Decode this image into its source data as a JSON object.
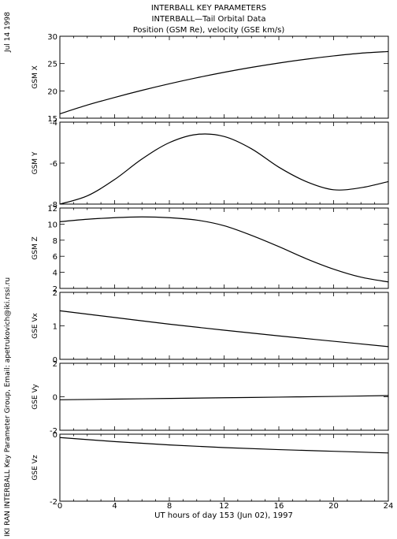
{
  "header": {
    "title_line1": "INTERBALL KEY PARAMETERS",
    "title_line2": "INTERBALL—Tail Orbital Data",
    "title_line3": "Position (GSM Re), velocity (GSE km/s)",
    "date": "Jul 14 1998",
    "credit": "IKI RAN INTERBALL Key Parameter Group, Email: apetrukovich@iki.rssi.ru"
  },
  "chart_data": [
    {
      "type": "line",
      "ylabel": "GSM X",
      "ylim": [
        15,
        30
      ],
      "yticks": [
        15,
        20,
        25,
        30
      ],
      "x": [
        0,
        2,
        4,
        6,
        8,
        10,
        12,
        14,
        16,
        18,
        20,
        22,
        24
      ],
      "values": [
        15.8,
        17.4,
        18.8,
        20.1,
        21.3,
        22.4,
        23.4,
        24.3,
        25.1,
        25.8,
        26.4,
        26.9,
        27.2
      ]
    },
    {
      "type": "line",
      "ylabel": "GSM Y",
      "ylim": [
        -8,
        -4
      ],
      "yticks": [
        -8,
        -6,
        -4
      ],
      "x": [
        0,
        2,
        4,
        6,
        8,
        10,
        12,
        14,
        16,
        18,
        20,
        22,
        24
      ],
      "values": [
        -8.0,
        -7.6,
        -6.8,
        -5.8,
        -5.0,
        -4.6,
        -4.7,
        -5.3,
        -6.2,
        -6.9,
        -7.3,
        -7.2,
        -6.9
      ]
    },
    {
      "type": "line",
      "ylabel": "GSM Z",
      "ylim": [
        2,
        12
      ],
      "yticks": [
        2,
        4,
        6,
        8,
        10,
        12
      ],
      "x": [
        0,
        2,
        4,
        6,
        8,
        10,
        12,
        14,
        16,
        18,
        20,
        22,
        24
      ],
      "values": [
        10.3,
        10.6,
        10.8,
        10.9,
        10.8,
        10.5,
        9.8,
        8.6,
        7.2,
        5.7,
        4.4,
        3.4,
        2.8
      ]
    },
    {
      "type": "line",
      "ylabel": "GSE Vx",
      "ylim": [
        0,
        2
      ],
      "yticks": [
        0,
        1,
        2
      ],
      "x": [
        0,
        4,
        8,
        12,
        16,
        20,
        24
      ],
      "values": [
        1.45,
        1.25,
        1.05,
        0.87,
        0.7,
        0.54,
        0.38
      ]
    },
    {
      "type": "line",
      "ylabel": "GSE Vy",
      "ylim": [
        -2,
        2
      ],
      "yticks": [
        -2,
        0,
        2
      ],
      "x": [
        0,
        4,
        8,
        12,
        16,
        20,
        24
      ],
      "values": [
        -0.18,
        -0.14,
        -0.1,
        -0.06,
        -0.02,
        0.02,
        0.07
      ]
    },
    {
      "type": "line",
      "ylabel": "GSE Vz",
      "ylim": [
        -2,
        0
      ],
      "yticks": [
        -2,
        0
      ],
      "x": [
        0,
        4,
        8,
        12,
        16,
        20,
        24
      ],
      "values": [
        -0.1,
        -0.22,
        -0.32,
        -0.4,
        -0.46,
        -0.51,
        -0.56
      ]
    }
  ],
  "x_axis": {
    "label": "UT hours of day 153 (Jun 02), 1997",
    "xlim": [
      0,
      24
    ],
    "ticks": [
      0,
      4,
      8,
      12,
      16,
      20,
      24
    ]
  }
}
